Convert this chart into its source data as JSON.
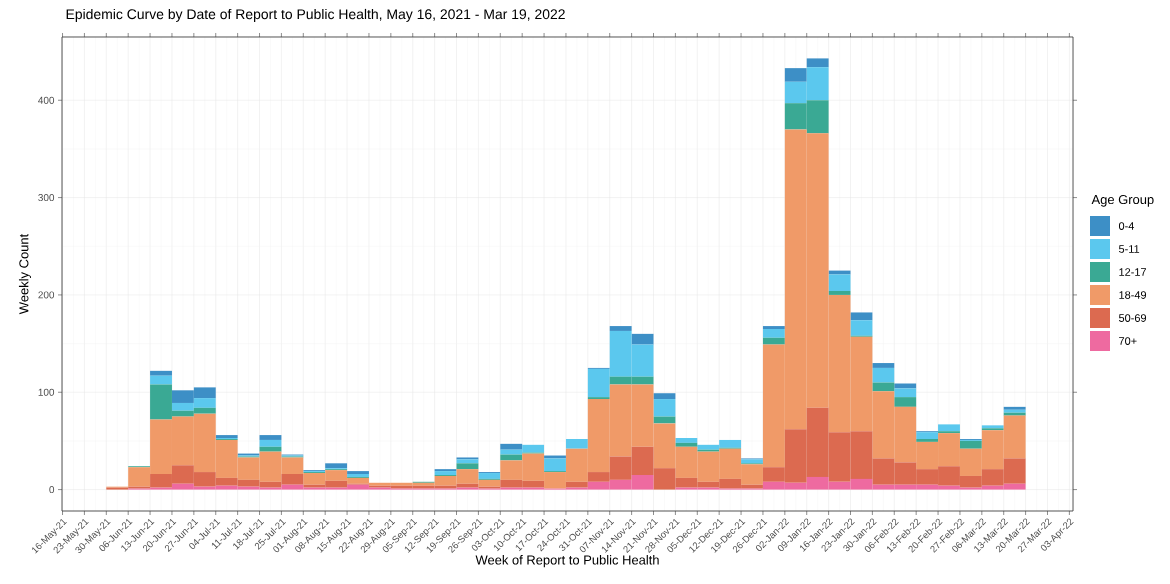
{
  "chart_data": {
    "type": "bar",
    "stacked": true,
    "title": "Epidemic Curve by Date of Report to Public Health, May 16, 2021 - Mar 19, 2022",
    "xlabel": "Week of Report to Public Health",
    "ylabel": "Weekly Count",
    "legend_title": "Age Group",
    "legend": "right",
    "grid": true,
    "x": [
      "2021-06-02T12:00",
      "2021-06-09T12:00",
      "2021-06-16T12:00",
      "2021-06-23T12:00",
      "2021-06-30T12:00",
      "2021-07-07T12:00",
      "2021-07-14T12:00",
      "2021-07-21T12:00",
      "2021-07-28T12:00",
      "2021-08-04T12:00",
      "2021-08-11T12:00",
      "2021-08-18T12:00",
      "2021-08-25T12:00",
      "2021-09-01T12:00",
      "2021-09-08T12:00",
      "2021-09-15T12:00",
      "2021-09-22T12:00",
      "2021-09-29T12:00",
      "2021-10-06T12:00",
      "2021-10-13T12:00",
      "2021-10-20T12:00",
      "2021-10-27T12:00",
      "2021-11-03T12:00",
      "2021-11-10T12:00",
      "2021-11-17T12:00",
      "2021-11-24T12:00",
      "2021-12-01T12:00",
      "2021-12-08T12:00",
      "2021-12-15T12:00",
      "2021-12-22T12:00",
      "2021-12-29T12:00",
      "2022-01-05T12:00",
      "2022-01-12T12:00",
      "2022-01-19T12:00",
      "2022-01-26T12:00",
      "2022-02-02T12:00",
      "2022-02-09T12:00",
      "2022-02-16T12:00",
      "2022-02-23T12:00",
      "2022-03-02T12:00",
      "2022-03-09T12:00",
      "2022-03-16T12:00"
    ],
    "series": [
      {
        "name": "70+",
        "color": "#ee6aa0",
        "values": [
          0,
          1,
          2,
          6,
          3,
          4,
          3,
          2,
          5,
          2,
          2,
          5,
          2,
          1,
          1,
          1,
          2,
          1,
          2,
          2,
          1,
          2,
          8,
          10,
          15,
          0,
          2,
          2,
          1,
          1,
          8,
          7,
          13,
          8,
          11,
          5,
          5,
          5,
          4,
          2,
          4,
          6
        ]
      },
      {
        "name": "50-69",
        "color": "#dc6a50",
        "values": [
          2,
          2,
          14,
          19,
          15,
          8,
          7,
          6,
          11,
          3,
          7,
          1,
          2,
          3,
          3,
          3,
          4,
          2,
          8,
          7,
          0,
          6,
          10,
          24,
          29,
          22,
          10,
          6,
          10,
          4,
          15,
          55,
          71,
          51,
          49,
          27,
          23,
          16,
          20,
          12,
          17,
          26
        ]
      },
      {
        "name": "18-49",
        "color": "#f09a68",
        "values": [
          1,
          20,
          56,
          50,
          60,
          39,
          23,
          31,
          17,
          12,
          11,
          6,
          3,
          3,
          3,
          10,
          15,
          7,
          20,
          28,
          17,
          34,
          75,
          74,
          64,
          46,
          32,
          31,
          31,
          21,
          126,
          308,
          282,
          141,
          97,
          69,
          57,
          28,
          34,
          28,
          40,
          44
        ]
      },
      {
        "name": "12-17",
        "color": "#3aa994",
        "values": [
          0,
          1,
          36,
          6,
          6,
          1,
          1,
          5,
          1,
          1,
          1,
          1,
          0,
          0,
          1,
          1,
          6,
          1,
          6,
          1,
          1,
          0,
          2,
          8,
          8,
          7,
          4,
          2,
          1,
          1,
          7,
          27,
          34,
          4,
          1,
          9,
          10,
          3,
          2,
          8,
          2,
          3
        ]
      },
      {
        "name": "5-11",
        "color": "#5bc8ee",
        "values": [
          0,
          0,
          9,
          8,
          10,
          1,
          1,
          7,
          1,
          1,
          1,
          3,
          0,
          0,
          0,
          4,
          4,
          6,
          5,
          8,
          13,
          10,
          29,
          47,
          33,
          18,
          5,
          5,
          8,
          4,
          9,
          22,
          34,
          17,
          16,
          15,
          9,
          7,
          7,
          1,
          3,
          3
        ]
      },
      {
        "name": "0-4",
        "color": "#3d8fc6",
        "values": [
          0,
          0,
          5,
          13,
          11,
          3,
          2,
          5,
          1,
          1,
          5,
          3,
          0,
          0,
          0,
          2,
          2,
          1,
          6,
          0,
          3,
          0,
          1,
          5,
          11,
          6,
          0,
          0,
          0,
          1,
          3,
          14,
          9,
          4,
          8,
          5,
          5,
          1,
          0,
          1,
          0,
          3
        ]
      }
    ],
    "xlim": [
      "2021-05-15T20:00",
      "2022-04-04T04:00"
    ],
    "ylim": [
      -22,
      465
    ],
    "yticks": [
      0,
      100,
      200,
      300,
      400
    ],
    "xticks": [
      {
        "value": "2021-05-16",
        "label": "16-May-21"
      },
      {
        "value": "2021-05-23",
        "label": "23-May-21"
      },
      {
        "value": "2021-05-30",
        "label": "30-May-21"
      },
      {
        "value": "2021-06-06",
        "label": "06-Jun-21"
      },
      {
        "value": "2021-06-13",
        "label": "13-Jun-21"
      },
      {
        "value": "2021-06-20",
        "label": "20-Jun-21"
      },
      {
        "value": "2021-06-27",
        "label": "27-Jun-21"
      },
      {
        "value": "2021-07-04",
        "label": "04-Jul-21"
      },
      {
        "value": "2021-07-11",
        "label": "11-Jul-21"
      },
      {
        "value": "2021-07-18",
        "label": "18-Jul-21"
      },
      {
        "value": "2021-07-25",
        "label": "25-Jul-21"
      },
      {
        "value": "2021-08-01",
        "label": "01-Aug-21"
      },
      {
        "value": "2021-08-08",
        "label": "08-Aug-21"
      },
      {
        "value": "2021-08-15",
        "label": "15-Aug-21"
      },
      {
        "value": "2021-08-22",
        "label": "22-Aug-21"
      },
      {
        "value": "2021-08-29",
        "label": "29-Aug-21"
      },
      {
        "value": "2021-09-05",
        "label": "05-Sep-21"
      },
      {
        "value": "2021-09-12",
        "label": "12-Sep-21"
      },
      {
        "value": "2021-09-19",
        "label": "19-Sep-21"
      },
      {
        "value": "2021-09-26",
        "label": "26-Sep-21"
      },
      {
        "value": "2021-10-03",
        "label": "03-Oct-21"
      },
      {
        "value": "2021-10-10",
        "label": "10-Oct-21"
      },
      {
        "value": "2021-10-17",
        "label": "17-Oct-21"
      },
      {
        "value": "2021-10-24",
        "label": "24-Oct-21"
      },
      {
        "value": "2021-10-31",
        "label": "31-Oct-21"
      },
      {
        "value": "2021-11-07",
        "label": "07-Nov-21"
      },
      {
        "value": "2021-11-14",
        "label": "14-Nov-21"
      },
      {
        "value": "2021-11-21",
        "label": "21-Nov-21"
      },
      {
        "value": "2021-11-28",
        "label": "28-Nov-21"
      },
      {
        "value": "2021-12-05",
        "label": "05-Dec-21"
      },
      {
        "value": "2021-12-12",
        "label": "12-Dec-21"
      },
      {
        "value": "2021-12-19",
        "label": "19-Dec-21"
      },
      {
        "value": "2021-12-26",
        "label": "26-Dec-21"
      },
      {
        "value": "2022-01-02",
        "label": "02-Jan-22"
      },
      {
        "value": "2022-01-09",
        "label": "09-Jan-22"
      },
      {
        "value": "2022-01-16",
        "label": "16-Jan-22"
      },
      {
        "value": "2022-01-23",
        "label": "23-Jan-22"
      },
      {
        "value": "2022-01-30",
        "label": "30-Jan-22"
      },
      {
        "value": "2022-02-06",
        "label": "06-Feb-22"
      },
      {
        "value": "2022-02-13",
        "label": "13-Feb-22"
      },
      {
        "value": "2022-02-20",
        "label": "20-Feb-22"
      },
      {
        "value": "2022-02-27",
        "label": "27-Feb-22"
      },
      {
        "value": "2022-03-06",
        "label": "06-Mar-22"
      },
      {
        "value": "2022-03-13",
        "label": "13-Mar-22"
      },
      {
        "value": "2022-03-20",
        "label": "20-Mar-22"
      },
      {
        "value": "2022-03-27",
        "label": "27-Mar-22"
      },
      {
        "value": "2022-04-03",
        "label": "03-Apr-22"
      }
    ]
  }
}
